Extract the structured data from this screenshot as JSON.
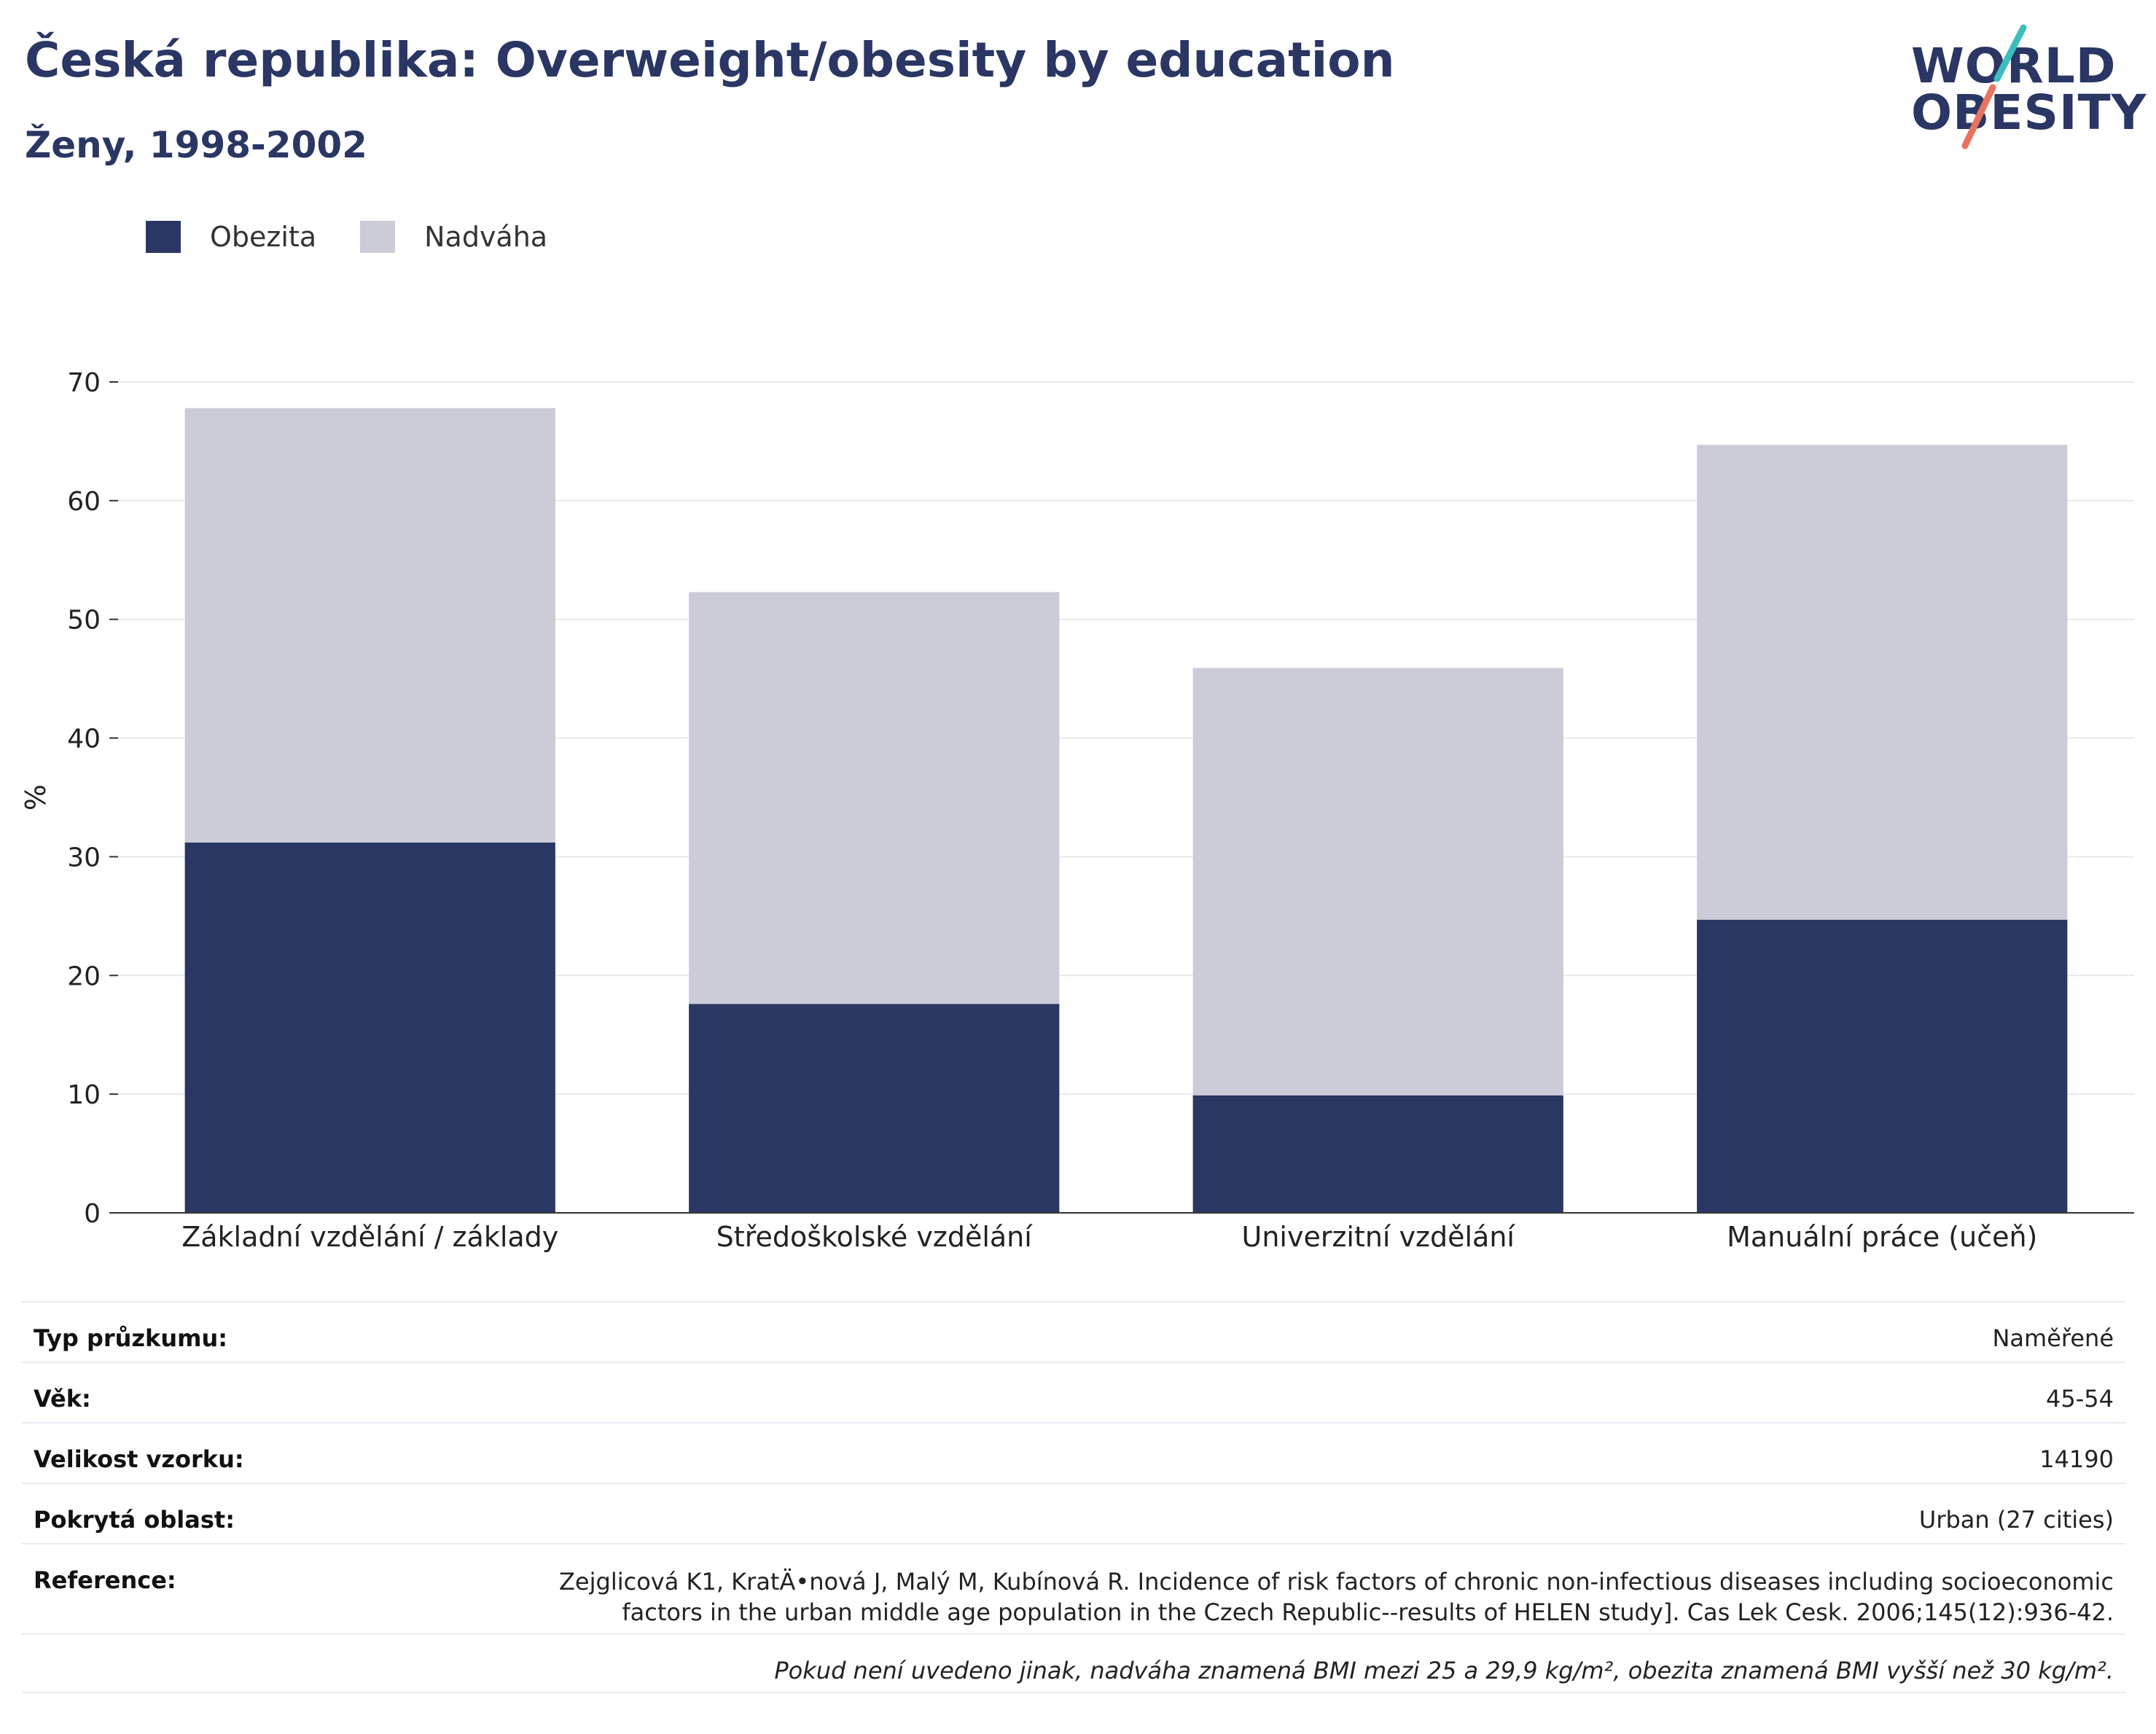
{
  "header": {
    "title": "Česká republika: Overweight/obesity by education",
    "subtitle": "Ženy, 1998-2002"
  },
  "logo": {
    "line1": "WORLD",
    "line2": "OBESITY",
    "colors": {
      "text": "#2a3663",
      "slash_top": "#3dbdbd",
      "slash_bottom": "#e8735f"
    }
  },
  "legend": [
    {
      "label": "Obezita",
      "color": "#2a3663"
    },
    {
      "label": "Nadváha",
      "color": "#cbccd8"
    }
  ],
  "chart_data": {
    "type": "bar",
    "stacked": true,
    "categories": [
      "Základní vzdělání / základy",
      "Středoškolské vzdělání",
      "Univerzitní vzdělání",
      "Manuální práce (učeň)"
    ],
    "series": [
      {
        "name": "Obezita",
        "values": [
          31.2,
          17.6,
          9.9,
          24.7
        ],
        "color": "#2a3663"
      },
      {
        "name": "Nadváha",
        "values": [
          36.6,
          34.7,
          36.0,
          40.0
        ],
        "color": "#cbccd8"
      }
    ],
    "ylabel": "%",
    "ylim": [
      0,
      70
    ],
    "yticks": [
      0,
      10,
      20,
      30,
      40,
      50,
      60,
      70
    ],
    "grid": true,
    "legend_position": "top-left"
  },
  "info": {
    "rows": [
      {
        "key": "Typ průzkumu:",
        "value": "Naměřené"
      },
      {
        "key": "Věk:",
        "value": "45-54"
      },
      {
        "key": "Velikost vzorku:",
        "value": "14190"
      },
      {
        "key": "Pokrytá oblast:",
        "value": "Urban (27 cities)"
      }
    ],
    "reference": {
      "key": "Reference:",
      "line1": "Zejglicová K1, KratÄ•nová J, Malý M, Kubínová R.  Incidence of risk factors of chronic non-infectious diseases including socioeconomic",
      "line2": "factors in the urban middle age population in the Czech Republic--results of HELEN study]. Cas Lek Cesk. 2006;145(12):936-42."
    },
    "note": "Pokud není uvedeno jinak, nadváha znamená BMI mezi 25 a 29,9 kg/m², obezita znamená BMI vyšší než 30 kg/m²."
  }
}
